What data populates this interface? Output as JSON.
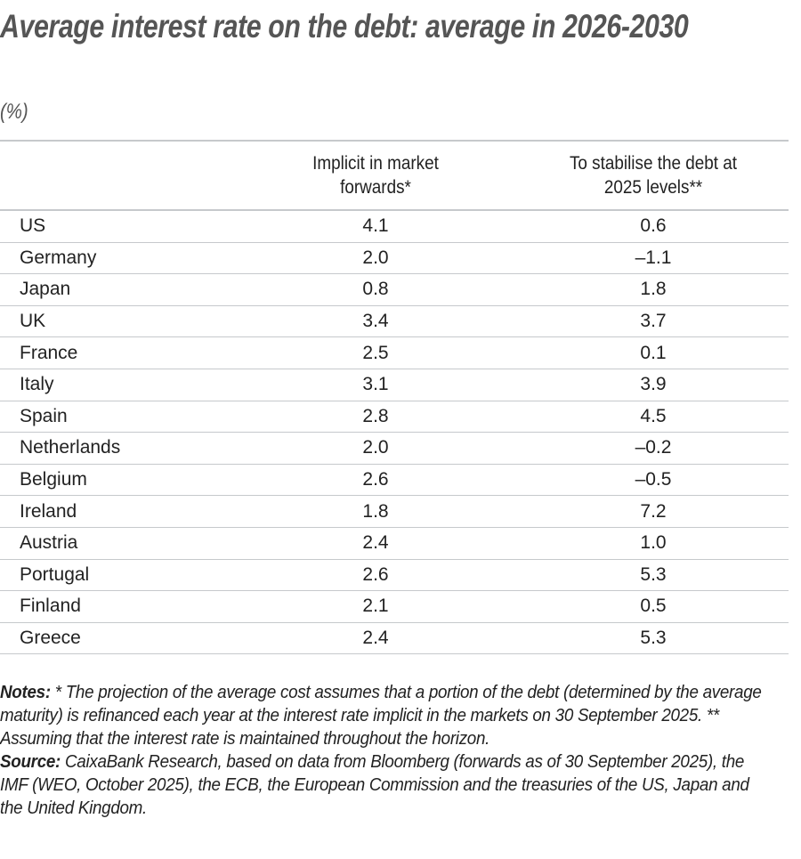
{
  "title": "Average interest rate on the debt: average in 2026-2030",
  "unit": "(%)",
  "chart_data": {
    "type": "table",
    "title": "Average interest rate on the debt: average in 2026-2030",
    "unit": "(%)",
    "columns": [
      "",
      "Implicit in market forwards*",
      "To stabilise the debt at 2025 levels**"
    ],
    "rows": [
      {
        "country": "US",
        "implicit": "4.1",
        "stabilise": "0.6"
      },
      {
        "country": "Germany",
        "implicit": "2.0",
        "stabilise": "–1.1"
      },
      {
        "country": "Japan",
        "implicit": "0.8",
        "stabilise": "1.8"
      },
      {
        "country": "UK",
        "implicit": "3.4",
        "stabilise": "3.7"
      },
      {
        "country": "France",
        "implicit": "2.5",
        "stabilise": "0.1"
      },
      {
        "country": "Italy",
        "implicit": "3.1",
        "stabilise": "3.9"
      },
      {
        "country": "Spain",
        "implicit": "2.8",
        "stabilise": "4.5"
      },
      {
        "country": "Netherlands",
        "implicit": "2.0",
        "stabilise": "–0.2"
      },
      {
        "country": "Belgium",
        "implicit": "2.6",
        "stabilise": "–0.5"
      },
      {
        "country": "Ireland",
        "implicit": "1.8",
        "stabilise": "7.2"
      },
      {
        "country": "Austria",
        "implicit": "2.4",
        "stabilise": "1.0"
      },
      {
        "country": "Portugal",
        "implicit": "2.6",
        "stabilise": "5.3"
      },
      {
        "country": "Finland",
        "implicit": "2.1",
        "stabilise": "0.5"
      },
      {
        "country": "Greece",
        "implicit": "2.4",
        "stabilise": "5.3"
      }
    ]
  },
  "notes": {
    "notes_label": "Notes:",
    "notes_text": " * The projection of the average cost assumes that a portion of the debt (determined by the average maturity) is refinanced each year at the interest rate implicit in the markets on 30 September 2025. ** Assuming that the interest rate is maintained throughout the horizon.",
    "source_label": "Source:",
    "source_text": " CaixaBank Research, based on data from Bloomberg (forwards as of 30 September 2025), the IMF (WEO, October 2025), the ECB, the European Commission and the treasuries of the US, Japan and the United Kingdom."
  },
  "colors": {
    "title": "#555555",
    "rule": "#c6c9cc",
    "text": "#222222"
  }
}
